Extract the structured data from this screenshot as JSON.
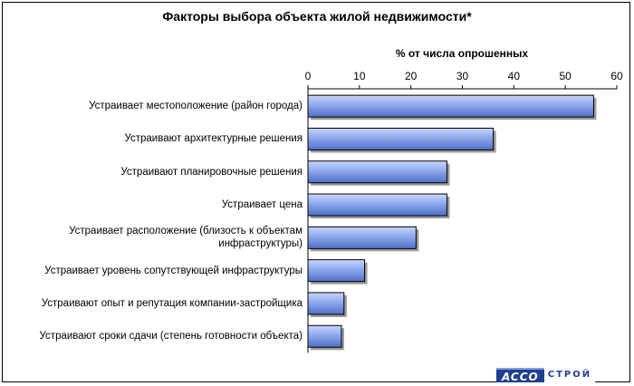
{
  "chart_data": {
    "type": "bar",
    "orientation": "horizontal",
    "title": "Факторы выбора объекта жилой недвижимости*",
    "xlabel": "% от числа опрошенных",
    "xlim": [
      0,
      60
    ],
    "ticks": [
      0,
      10,
      20,
      30,
      40,
      50,
      60
    ],
    "axis_position": "top",
    "categories": [
      "Устраивает местоположение (район города)",
      "Устраивают архитектурные решения",
      "Устраивают планировочные решения",
      "Устраивает цена",
      "Устраивает расположение (близость к объектам инфраструктуры)",
      "Устраивает уровень сопутствующей инфраструктуры",
      "Устраивают опыт и репутация компании-застройщика",
      "Устраивают сроки сдачи (степень готовности объекта)"
    ],
    "values": [
      55.5,
      36,
      27,
      27,
      21,
      11,
      7,
      6.5
    ],
    "bar_color": "#6f8fdf",
    "grid": false
  },
  "logo": {
    "main": "ACCO",
    "sub": "СТРОЙ"
  }
}
